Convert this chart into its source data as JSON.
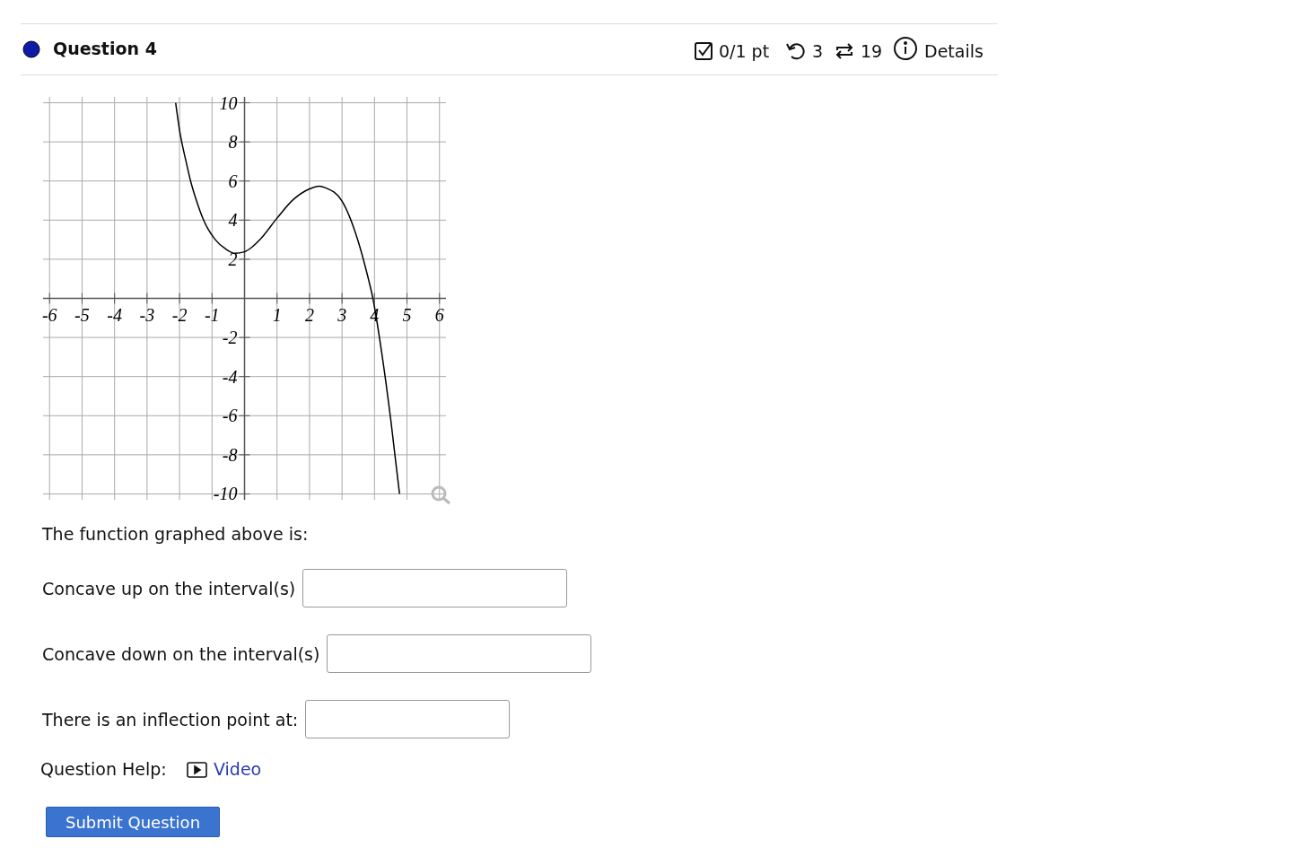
{
  "chart_data": {
    "type": "line",
    "series": [
      {
        "color": "#000000",
        "x": [
          -2.12,
          -2,
          -1.8,
          -1.66,
          -1.5,
          -1.26,
          -0.9,
          -0.6,
          -0.3,
          0,
          0.25,
          0.5,
          1,
          1.5,
          2,
          2.3,
          2.5,
          3,
          3.25,
          3.5,
          3.75,
          3.95,
          4.25,
          4.5,
          4.77
        ],
        "values": [
          10,
          8.6,
          7,
          6,
          5.1,
          4,
          3,
          2.55,
          2.3,
          2.38,
          2.65,
          3.05,
          4.1,
          5.05,
          5.6,
          5.74,
          5.65,
          4.97,
          4.1,
          2.9,
          1.4,
          0,
          -3.1,
          -6.2,
          -10
        ]
      }
    ],
    "xlim": [
      -6.2,
      6.2
    ],
    "ylim": [
      -10.3,
      10.3
    ],
    "xticks": [
      -6,
      -5,
      -4,
      -3,
      -2,
      -1,
      {
        "value": 0,
        "label": null
      },
      1,
      2,
      3,
      4,
      5,
      6
    ],
    "yticks": [
      -10,
      -8,
      -6,
      -4,
      -2,
      {
        "value": 0,
        "label": null
      },
      2,
      4,
      6,
      8,
      10
    ],
    "grid": true,
    "marker": "none",
    "line_style": "solid",
    "annotations": [
      "Question 4",
      "0/1 pt",
      "3",
      "19",
      "Details",
      "The function graphed above is:",
      "Concave up on the interval(s)",
      "Concave down on the interval(s)",
      "There is an inflection point at:",
      "Question Help:",
      "Video",
      "Submit Question"
    ]
  }
}
